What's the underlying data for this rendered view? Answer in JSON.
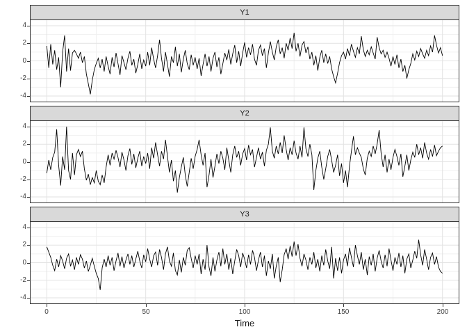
{
  "chart_data": {
    "type": "line",
    "title": "",
    "xlabel": "Time",
    "ylabel": "",
    "x_range": [
      0,
      200
    ],
    "y_range": [
      -4,
      4
    ],
    "x_ticks": [
      0,
      50,
      100,
      150,
      200
    ],
    "y_ticks": [
      4,
      2,
      0,
      -2,
      -4
    ],
    "x_minor_gridlines": [
      25,
      75,
      125,
      175
    ],
    "y_minor_gridlines": [
      3,
      1,
      -1,
      -3
    ],
    "grid": "major and minor, light gray on white",
    "legend_position": "none",
    "line_color": "#000000",
    "strip_fill": "#d9d9d9",
    "strip_border_color": "#333333",
    "panel_border_color": "#333333",
    "grid_major_color": "#e2e2e2",
    "grid_minor_color": "#f0f0f0",
    "axis_text_color": "#404040",
    "facets": [
      {
        "label": "Y1",
        "values": [
          1.7,
          -0.8,
          1.9,
          -0.4,
          1.2,
          -1.0,
          0.4,
          -3.0,
          1.0,
          2.9,
          -1.2,
          1.4,
          -1.1,
          0.9,
          1.2,
          0.8,
          0.3,
          1.0,
          -0.2,
          0.5,
          -1.5,
          -2.6,
          -3.8,
          -2.2,
          -1.0,
          -0.3,
          0.3,
          -0.8,
          0.2,
          -1.2,
          0.5,
          -0.6,
          -1.5,
          0.4,
          -0.7,
          0.9,
          -0.3,
          -1.6,
          0.6,
          -0.2,
          -1.0,
          0.3,
          1.1,
          -0.5,
          0.2,
          -1.4,
          -0.4,
          0.8,
          -0.9,
          0.1,
          -0.6,
          1.0,
          -0.5,
          1.5,
          0.2,
          -0.8,
          0.6,
          2.4,
          0.3,
          -1.2,
          1.0,
          -0.4,
          -1.8,
          0.5,
          -0.2,
          1.6,
          -0.6,
          0.8,
          -1.3,
          0.2,
          1.2,
          -0.3,
          -1.0,
          0.7,
          -0.5,
          0.4,
          -0.9,
          0.3,
          -1.7,
          -0.4,
          0.8,
          -0.6,
          0.5,
          -1.2,
          0.3,
          1.0,
          -0.7,
          0.4,
          -1.5,
          -0.3,
          0.9,
          0.1,
          1.3,
          -0.4,
          0.8,
          1.8,
          -0.2,
          1.1,
          -0.6,
          0.9,
          2.1,
          0.4,
          1.5,
          0.7,
          1.9,
          0.2,
          -0.5,
          1.2,
          1.8,
          0.6,
          1.4,
          -0.8,
          0.9,
          2.2,
          1.0,
          0.1,
          1.6,
          2.4,
          0.8,
          1.5,
          0.3,
          2.0,
          1.2,
          2.6,
          1.4,
          3.2,
          1.1,
          2.0,
          0.5,
          1.8,
          2.2,
          0.9,
          1.6,
          0.2,
          1.0,
          -0.5,
          0.6,
          -1.1,
          0.4,
          1.2,
          -0.2,
          0.8,
          -0.3,
          0.5,
          -0.9,
          -1.8,
          -2.5,
          -1.4,
          -0.2,
          0.6,
          1.0,
          0.2,
          1.4,
          0.6,
          1.9,
          1.1,
          0.4,
          1.5,
          0.8,
          2.8,
          1.3,
          0.5,
          1.2,
          0.7,
          1.6,
          0.9,
          0.2,
          2.7,
          1.5,
          0.8,
          1.2,
          0.4,
          1.0,
          0.3,
          -0.6,
          0.5,
          -0.4,
          0.7,
          -0.8,
          0.2,
          -1.2,
          -0.5,
          -2.0,
          -1.0,
          -0.3,
          0.8,
          0.1,
          1.1,
          0.5,
          1.4,
          0.8,
          0.3,
          1.2,
          0.6,
          1.7,
          1.0,
          2.9,
          1.8,
          0.9,
          1.5,
          0.6
        ]
      },
      {
        "label": "Y2",
        "values": [
          -1.3,
          0.2,
          -0.9,
          0.5,
          1.1,
          3.7,
          -0.4,
          -2.7,
          0.6,
          -0.9,
          4.0,
          -1.0,
          -2.0,
          1.0,
          -1.5,
          0.8,
          1.4,
          0.6,
          1.2,
          -0.8,
          -2.1,
          -1.4,
          -2.6,
          -1.8,
          -2.4,
          -1.0,
          -2.2,
          -2.6,
          -1.5,
          -2.4,
          -0.6,
          0.8,
          -0.4,
          1.0,
          0.3,
          1.3,
          0.5,
          -0.6,
          1.1,
          0.2,
          -1.0,
          0.7,
          1.5,
          -0.3,
          0.9,
          -0.7,
          0.4,
          1.2,
          -0.5,
          0.6,
          -0.2,
          1.0,
          -0.8,
          1.6,
          0.4,
          2.2,
          0.8,
          -0.5,
          1.2,
          0.3,
          2.5,
          0.6,
          -1.2,
          0.2,
          -2.2,
          -1.0,
          -3.5,
          -1.8,
          -0.6,
          0.5,
          -1.5,
          -2.8,
          -1.2,
          0.4,
          -0.8,
          0.6,
          1.4,
          2.5,
          0.8,
          -0.4,
          1.0,
          -2.9,
          -1.5,
          0.3,
          -1.8,
          -0.5,
          0.9,
          -0.2,
          1.2,
          0.4,
          -0.9,
          1.6,
          0.2,
          -1.2,
          0.8,
          1.8,
          0.5,
          1.2,
          -0.4,
          0.9,
          1.5,
          0.2,
          1.9,
          0.8,
          1.4,
          -0.6,
          0.5,
          1.6,
          0.3,
          1.1,
          -0.5,
          1.3,
          2.0,
          3.9,
          1.2,
          0.4,
          1.8,
          0.9,
          2.2,
          1.0,
          3.0,
          1.4,
          0.2,
          1.6,
          0.8,
          2.4,
          1.0,
          0.3,
          1.8,
          0.5,
          3.9,
          1.5,
          0.6,
          2.0,
          0.8,
          -3.2,
          -1.0,
          0.4,
          1.2,
          -0.6,
          -2.0,
          -0.8,
          0.6,
          1.4,
          0.2,
          -1.2,
          -0.4,
          0.8,
          -1.6,
          -0.2,
          -2.4,
          -1.0,
          -2.9,
          -0.5,
          1.2,
          2.9,
          0.8,
          1.6,
          1.0,
          0.5,
          -0.8,
          -1.5,
          0.4,
          1.2,
          0.6,
          1.8,
          0.9,
          2.0,
          3.6,
          1.0,
          -0.6,
          0.8,
          -1.2,
          0.3,
          -0.9,
          0.5,
          1.4,
          0.6,
          -0.4,
          0.9,
          -1.7,
          -0.5,
          0.8,
          -1.0,
          0.2,
          1.1,
          0.5,
          2.0,
          0.8,
          1.6,
          0.4,
          2.2,
          1.0,
          0.3,
          1.4,
          0.6,
          1.9,
          0.7,
          1.2,
          1.6,
          1.8
        ]
      },
      {
        "label": "Y3",
        "values": [
          1.8,
          1.2,
          0.6,
          -0.3,
          -0.9,
          0.4,
          -0.5,
          0.8,
          0.2,
          -0.7,
          0.5,
          1.0,
          -0.4,
          0.3,
          -0.8,
          0.6,
          -0.2,
          0.9,
          0.4,
          -0.6,
          0.2,
          -1.0,
          -0.3,
          0.5,
          -0.4,
          -1.2,
          -1.8,
          -3.1,
          -0.6,
          0.4,
          -0.5,
          0.8,
          -0.3,
          0.6,
          -0.9,
          0.2,
          1.1,
          -0.4,
          0.7,
          -0.6,
          0.3,
          1.0,
          -0.2,
          0.8,
          -0.5,
          0.4,
          1.3,
          0.2,
          -0.6,
          0.9,
          0.1,
          1.6,
          0.4,
          -0.5,
          0.8,
          1.2,
          -0.3,
          1.5,
          0.6,
          -0.8,
          1.0,
          1.8,
          0.2,
          -0.4,
          1.1,
          -0.9,
          -1.4,
          0.3,
          -1.1,
          0.6,
          -0.3,
          1.4,
          1.7,
          0.5,
          -0.6,
          0.8,
          -0.2,
          1.0,
          -1.3,
          0.4,
          -0.8,
          2.0,
          -0.5,
          -1.5,
          0.6,
          -1.0,
          0.3,
          1.2,
          -0.4,
          1.6,
          -0.2,
          1.0,
          -0.8,
          0.5,
          -1.3,
          0.2,
          1.5,
          0.8,
          -0.5,
          1.1,
          0.4,
          -0.6,
          0.9,
          -0.2,
          1.4,
          0.6,
          -0.9,
          0.3,
          1.2,
          -0.5,
          0.8,
          -1.5,
          0.2,
          -0.7,
          1.0,
          -1.8,
          -0.4,
          0.6,
          -2.2,
          -0.8,
          0.9,
          1.6,
          0.4,
          1.9,
          0.7,
          2.4,
          0.8,
          2.1,
          0.5,
          -0.4,
          1.0,
          0.3,
          -0.8,
          0.6,
          -0.2,
          1.2,
          -0.6,
          0.4,
          -1.0,
          0.8,
          -0.3,
          1.5,
          0.2,
          -0.7,
          1.8,
          -1.8,
          0.5,
          -0.9,
          0.6,
          -1.2,
          0.3,
          1.0,
          -0.4,
          1.7,
          0.6,
          -0.5,
          2.0,
          0.8,
          -0.2,
          1.2,
          -0.8,
          0.4,
          -1.4,
          0.7,
          -0.3,
          1.0,
          -1.0,
          0.5,
          1.4,
          0.2,
          -0.6,
          0.9,
          -0.4,
          1.6,
          0.3,
          -0.9,
          0.6,
          -0.2,
          1.1,
          -0.5,
          0.8,
          -1.2,
          0.4,
          1.0,
          -0.6,
          0.3,
          1.3,
          0.5,
          2.6,
          0.9,
          -0.3,
          1.5,
          0.4,
          -0.8,
          0.6,
          1.1,
          -0.2,
          0.7,
          -0.5,
          -1.0,
          -1.2
        ]
      }
    ]
  },
  "layout": {
    "strip_tops": [
      7,
      152,
      297
    ],
    "panel_tops": [
      28,
      173,
      318
    ]
  }
}
